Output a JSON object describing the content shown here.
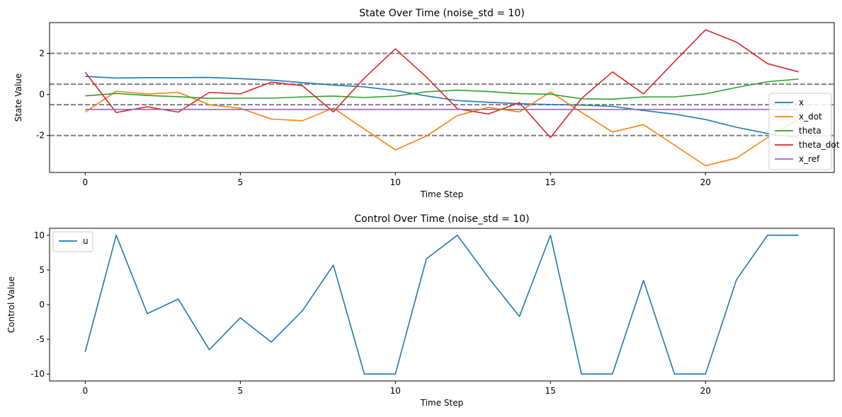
{
  "chart_data": [
    {
      "type": "line",
      "title": "State Over Time (noise_std = 10)",
      "xlabel": "Time Step",
      "ylabel": "State Value",
      "xlim": [
        -1.15,
        24.15
      ],
      "ylim": [
        -3.8,
        3.5
      ],
      "xticks": [
        0,
        5,
        10,
        15,
        20
      ],
      "yticks": [
        -2,
        0,
        2
      ],
      "grid": false,
      "legend_position": "lower-right",
      "reference_lines": [
        2,
        0.5,
        -0.5,
        -2
      ],
      "x": [
        0,
        1,
        2,
        3,
        4,
        5,
        6,
        7,
        8,
        9,
        10,
        11,
        12,
        13,
        14,
        15,
        16,
        17,
        18,
        19,
        20,
        21,
        22,
        23
      ],
      "series": [
        {
          "name": "x",
          "color": "#1f77b4",
          "values": [
            0.88,
            0.8,
            0.82,
            0.82,
            0.83,
            0.77,
            0.7,
            0.58,
            0.46,
            0.37,
            0.19,
            -0.07,
            -0.3,
            -0.38,
            -0.45,
            -0.49,
            -0.52,
            -0.58,
            -0.78,
            -0.96,
            -1.22,
            -1.6,
            -1.9,
            -2.1
          ]
        },
        {
          "name": "x_dot",
          "color": "#ff7f0e",
          "values": [
            -0.86,
            0.16,
            0.02,
            0.1,
            -0.5,
            -0.67,
            -1.2,
            -1.28,
            -0.66,
            -1.69,
            -2.7,
            -2.03,
            -1.03,
            -0.63,
            -0.85,
            0.12,
            -0.87,
            -1.83,
            -1.47,
            -2.47,
            -3.47,
            -3.1,
            -2.1,
            -1.2
          ]
        },
        {
          "name": "theta",
          "color": "#2ca02c",
          "values": [
            -0.07,
            0.05,
            -0.05,
            -0.11,
            -0.19,
            -0.18,
            -0.18,
            -0.12,
            -0.08,
            -0.15,
            -0.08,
            0.13,
            0.21,
            0.14,
            0.04,
            0.01,
            -0.21,
            -0.23,
            -0.12,
            -0.12,
            0.03,
            0.34,
            0.62,
            0.75
          ]
        },
        {
          "name": "theta_dot",
          "color": "#d62728",
          "values": [
            1.08,
            -0.88,
            -0.6,
            -0.86,
            0.1,
            0.03,
            0.6,
            0.43,
            -0.85,
            0.8,
            2.22,
            0.85,
            -0.7,
            -0.95,
            -0.4,
            -2.1,
            -0.2,
            1.1,
            0.03,
            1.6,
            3.15,
            2.55,
            1.5,
            1.1
          ]
        },
        {
          "name": "x_ref",
          "color": "#9467bd",
          "values": [
            -0.73,
            -0.73,
            -0.73,
            -0.73,
            -0.73,
            -0.73,
            -0.73,
            -0.73,
            -0.73,
            -0.73,
            -0.73,
            -0.73,
            -0.73,
            -0.73,
            -0.73,
            -0.73,
            -0.73,
            -0.73,
            -0.73,
            -0.73,
            -0.73,
            -0.73,
            -0.73,
            -0.73
          ]
        }
      ]
    },
    {
      "type": "line",
      "title": "Control Over Time (noise_std = 10)",
      "xlabel": "Time Step",
      "ylabel": "Control Value",
      "xlim": [
        -1.15,
        24.15
      ],
      "ylim": [
        -11.0,
        11.0
      ],
      "xticks": [
        0,
        5,
        10,
        15,
        20
      ],
      "yticks": [
        10,
        5,
        0,
        -5,
        -10
      ],
      "grid": false,
      "legend_position": "upper-left",
      "x": [
        0,
        1,
        2,
        3,
        4,
        5,
        6,
        7,
        8,
        9,
        10,
        11,
        12,
        13,
        14,
        15,
        16,
        17,
        18,
        19,
        20,
        21,
        22,
        23
      ],
      "series": [
        {
          "name": "u",
          "color": "#1f77b4",
          "values": [
            -6.8,
            10,
            -1.3,
            0.8,
            -6.5,
            -1.9,
            -5.4,
            -0.9,
            5.7,
            -10,
            -10,
            6.6,
            10,
            3.9,
            -1.7,
            10,
            -10,
            -10,
            3.5,
            -10,
            -10,
            3.6,
            10,
            10
          ]
        }
      ]
    }
  ]
}
